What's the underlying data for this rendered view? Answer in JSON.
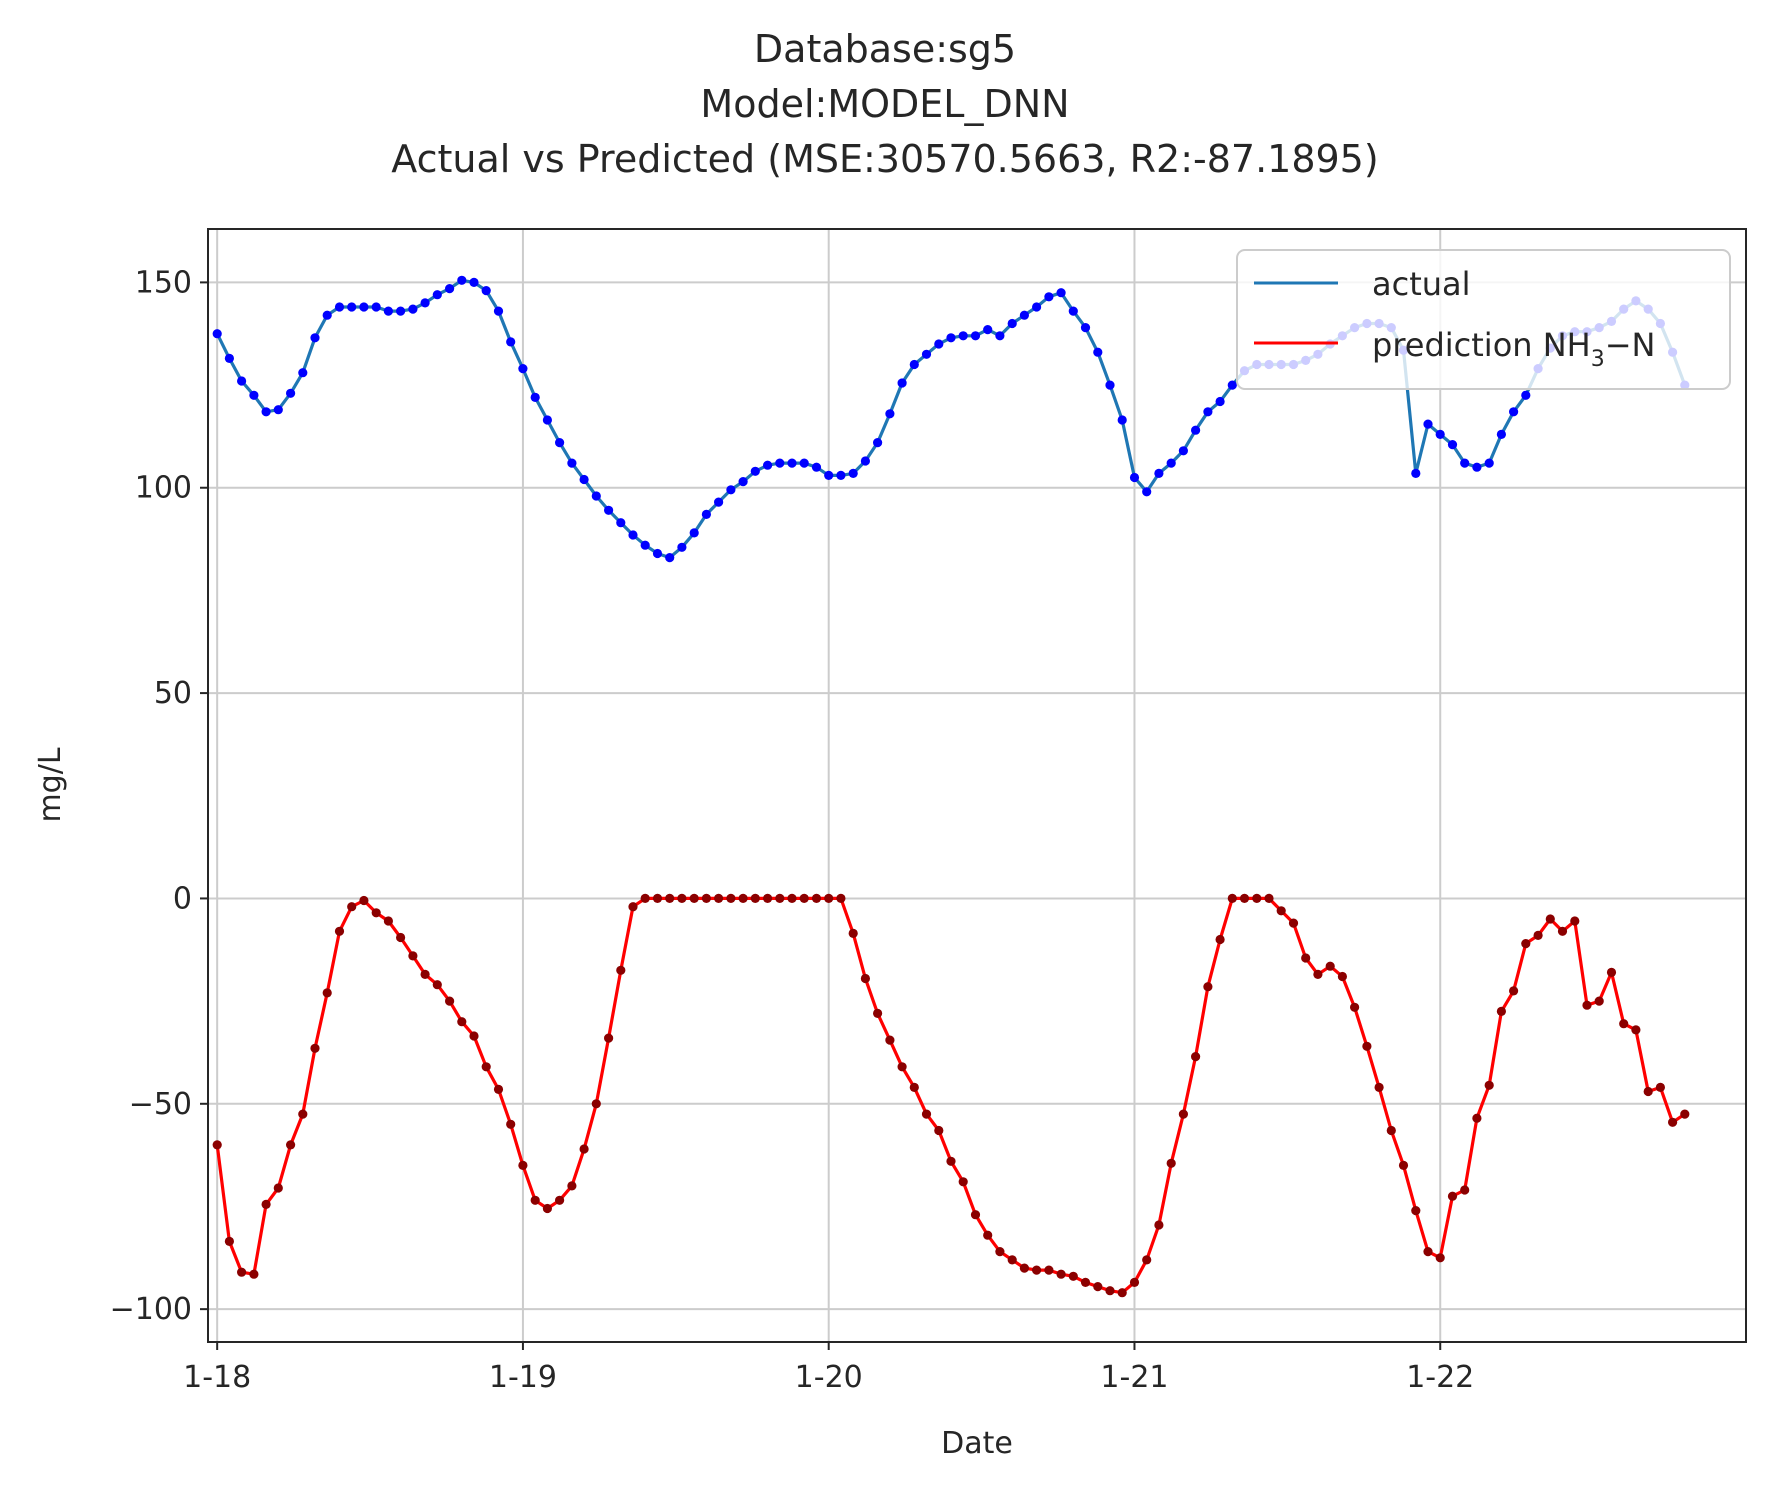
{
  "chart_data": {
    "type": "line",
    "title_lines": [
      "Database:sg5",
      "Model:MODEL_DNN",
      "Actual vs Predicted (MSE:30570.5663, R2:-87.1895)"
    ],
    "xlabel": "Date",
    "ylabel": "mg/L",
    "x_tick_labels": [
      "1-18",
      "1-19",
      "1-20",
      "1-21",
      "1-22"
    ],
    "x_tick_positions": [
      0,
      1,
      2,
      3,
      4
    ],
    "x_range": [
      -0.03,
      5.0
    ],
    "y_ticks": [
      150,
      100,
      50,
      0,
      -50,
      -100
    ],
    "y_tick_labels": [
      "150",
      "100",
      "50",
      "0",
      "−50",
      "−100"
    ],
    "ylim": [
      -108,
      163
    ],
    "grid": true,
    "legend_position": "top-right",
    "series": [
      {
        "name": "actual",
        "color": "#1f77b4",
        "marker_color": "#0000ff",
        "x_step_days": 0.04,
        "values": [
          137.5,
          131.5,
          126,
          122.5,
          118.5,
          119,
          123,
          128,
          136.5,
          142,
          144,
          144,
          144,
          144,
          143,
          143,
          143.5,
          145,
          147,
          148.5,
          150.5,
          150,
          148,
          143,
          135.5,
          129,
          122,
          116.5,
          111,
          106,
          102,
          98,
          94.5,
          91.5,
          88.5,
          86,
          84,
          83,
          85.5,
          89,
          93.5,
          96.5,
          99.5,
          101.5,
          104,
          105.5,
          106,
          106,
          106,
          105,
          103,
          103,
          103.5,
          106.5,
          111,
          118,
          125.5,
          130,
          132.5,
          135,
          136.5,
          137,
          137,
          138.5,
          137,
          140,
          142,
          144,
          146.5,
          147.5,
          143,
          139,
          133,
          125,
          116.5,
          102.5,
          99,
          103.5,
          106,
          109,
          114,
          118.5,
          121,
          125,
          128.5,
          130,
          130,
          130,
          130,
          131,
          132.5,
          135,
          137,
          139,
          140,
          140,
          139,
          133.5,
          103.5,
          115.5,
          113,
          110.5,
          106,
          105,
          106,
          113,
          118.5,
          122.5,
          129,
          134,
          137,
          138,
          138,
          139,
          140.5,
          143.5,
          145.5,
          143.5,
          140,
          133,
          125
        ]
      },
      {
        "name": "prediction NH3−N",
        "name_parts": [
          "prediction NH",
          "3",
          "−N"
        ],
        "color": "#ff0000",
        "marker_color": "#8b0000",
        "x_step_days": 0.04,
        "values": [
          -60,
          -83.5,
          -91,
          -91.5,
          -74.5,
          -70.5,
          -60,
          -52.5,
          -36.5,
          -23,
          -8,
          -2,
          -0.5,
          -3.5,
          -5.5,
          -9.5,
          -14,
          -18.5,
          -21,
          -25,
          -30,
          -33.5,
          -41,
          -46.5,
          -55,
          -65,
          -73.5,
          -75.5,
          -73.5,
          -70,
          -61,
          -50,
          -34,
          -17.5,
          -2,
          0,
          0,
          0,
          0,
          0,
          0,
          0,
          0,
          0,
          0,
          0,
          0,
          0,
          0,
          0,
          0,
          0,
          -8.5,
          -19.5,
          -28,
          -34.5,
          -41,
          -46,
          -52.5,
          -56.5,
          -64,
          -69,
          -77,
          -82,
          -86,
          -88,
          -90,
          -90.5,
          -90.5,
          -91.5,
          -92,
          -93.5,
          -94.5,
          -95.5,
          -96,
          -93.5,
          -88,
          -79.5,
          -64.5,
          -52.5,
          -38.5,
          -21.5,
          -10,
          0,
          0,
          0,
          0,
          -3,
          -6,
          -14.5,
          -18.5,
          -16.5,
          -19,
          -26.5,
          -36,
          -46,
          -56.5,
          -65,
          -76,
          -86,
          -87.5,
          -72.5,
          -71,
          -53.5,
          -45.5,
          -27.5,
          -22.5,
          -11,
          -9,
          -5,
          -8,
          -5.5,
          -26,
          -25,
          -18,
          -30.5,
          -32,
          -47,
          -46,
          -54.5,
          -52.5
        ]
      }
    ]
  }
}
